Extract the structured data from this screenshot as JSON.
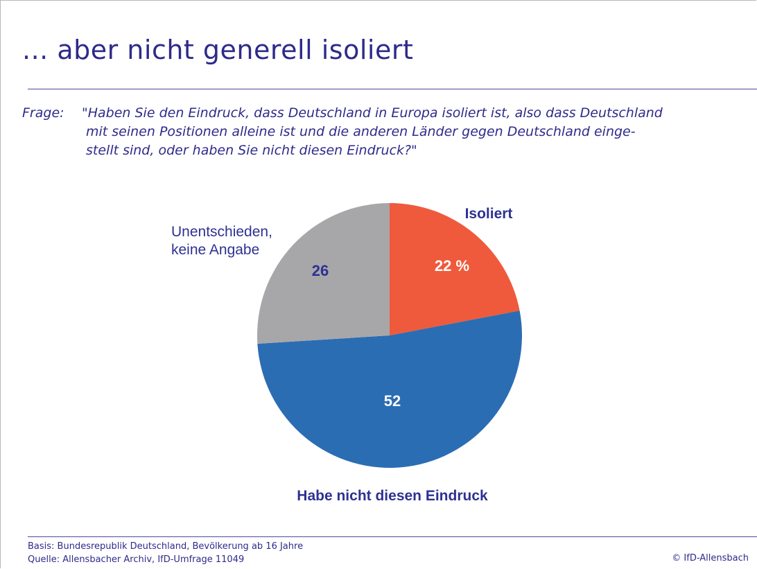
{
  "title": "... aber nicht generell isoliert",
  "question": {
    "label": "Frage:",
    "lines": [
      "\"Haben Sie den Eindruck, dass Deutschland in Europa isoliert ist, also dass Deutschland",
      "mit seinen Positionen alleine ist und die anderen Länder gegen Deutschland einge-",
      "stellt sind, oder haben Sie nicht diesen Eindruck?\""
    ]
  },
  "chart_data": {
    "type": "pie",
    "unit": "%",
    "slices": [
      {
        "label": "Isoliert",
        "value": 22,
        "value_label": "22 %",
        "color": "#ef5a3c",
        "label_color": "#2e3192",
        "label_bold": true
      },
      {
        "label": "Habe nicht diesen Eindruck",
        "value": 52,
        "value_label": "52",
        "color": "#2b6db3",
        "label_color": "#2e3192",
        "label_bold": true
      },
      {
        "label": "Unentschieden, keine Angabe",
        "label_lines": [
          "Unentschieden,",
          "keine Angabe"
        ],
        "value": 26,
        "value_label": "26",
        "color": "#a7a7a9",
        "label_color": "#2e3192",
        "label_bold": false
      }
    ],
    "value_label_colors": [
      "#ffffff",
      "#ffffff",
      "#2e3192"
    ]
  },
  "footer": {
    "basis": "Basis: Bundesrepublik Deutschland, Bevölkerung ab 16 Jahre",
    "source": "Quelle: Allensbacher Archiv, IfD-Umfrage 11049",
    "copyright": "© IfD-Allensbach"
  }
}
